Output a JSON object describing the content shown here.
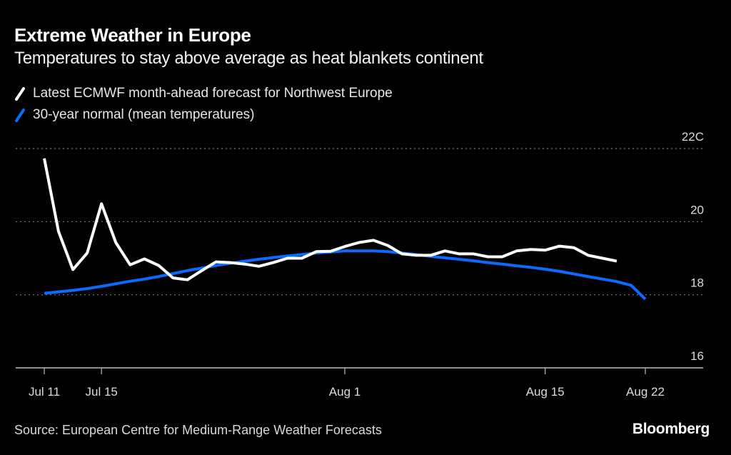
{
  "header": {
    "title": "Extreme Weather in Europe",
    "subtitle": "Temperatures to stay above average as heat blankets continent"
  },
  "footer": {
    "source": "Source: European Centre for Medium-Range Weather Forecasts",
    "logo": "Bloomberg"
  },
  "colors": {
    "background": "#000000",
    "forecast": "#ffffff",
    "normal": "#0a6cff",
    "grid": "#7a7a7a",
    "axis": "#bdbdbd"
  },
  "chart_data": {
    "type": "line",
    "title": "Extreme Weather in Europe",
    "subtitle": "Temperatures to stay above average as heat blankets continent",
    "xlabel": "",
    "ylabel": "",
    "x_unit": "days since Jul 11",
    "x_range": [
      0,
      42
    ],
    "ylim": [
      16,
      22
    ],
    "y_ticks": [
      16,
      18,
      20,
      22
    ],
    "y_tick_labels": [
      "16",
      "18",
      "20",
      "22C"
    ],
    "x_ticks": [
      0,
      4,
      21,
      35,
      42
    ],
    "x_tick_labels": [
      "Jul 11",
      "Jul 15",
      "Aug 1",
      "Aug 15",
      "Aug 22"
    ],
    "grid": true,
    "legend_position": "top-left",
    "series": [
      {
        "name": "Latest ECMWF month-ahead forecast for Northwest Europe",
        "color": "#ffffff",
        "x": [
          0,
          1,
          2,
          3,
          4,
          5,
          6,
          7,
          8,
          9,
          10,
          11,
          12,
          13,
          14,
          15,
          16,
          17,
          18,
          19,
          20,
          21,
          22,
          23,
          24,
          25,
          26,
          27,
          28,
          29,
          30,
          31,
          32,
          33,
          34,
          35,
          36,
          37,
          38,
          39,
          40
        ],
        "values": [
          21.73,
          19.73,
          18.69,
          19.14,
          20.49,
          19.43,
          18.82,
          18.98,
          18.8,
          18.46,
          18.41,
          18.66,
          18.9,
          18.88,
          18.84,
          18.78,
          18.88,
          19.0,
          19.0,
          19.18,
          19.19,
          19.32,
          19.43,
          19.49,
          19.35,
          19.12,
          19.08,
          19.08,
          19.2,
          19.12,
          19.12,
          19.04,
          19.04,
          19.2,
          19.24,
          19.22,
          19.33,
          19.29,
          19.08,
          19.0,
          18.92
        ]
      },
      {
        "name": "30-year normal (mean temperatures)",
        "color": "#0a6cff",
        "x": [
          0,
          1,
          2,
          3,
          4,
          5,
          6,
          7,
          8,
          9,
          10,
          11,
          12,
          13,
          14,
          15,
          16,
          17,
          18,
          19,
          20,
          21,
          22,
          23,
          24,
          25,
          26,
          27,
          28,
          29,
          30,
          31,
          32,
          33,
          34,
          35,
          36,
          37,
          38,
          39,
          40,
          41,
          42
        ],
        "values": [
          18.04,
          18.08,
          18.12,
          18.17,
          18.23,
          18.3,
          18.37,
          18.43,
          18.5,
          18.58,
          18.66,
          18.73,
          18.8,
          18.86,
          18.92,
          18.97,
          19.02,
          19.06,
          19.1,
          19.14,
          19.17,
          19.2,
          19.2,
          19.2,
          19.18,
          19.14,
          19.1,
          19.05,
          19.01,
          18.97,
          18.93,
          18.88,
          18.84,
          18.79,
          18.75,
          18.7,
          18.64,
          18.57,
          18.5,
          18.43,
          18.36,
          18.26,
          17.88
        ]
      }
    ]
  }
}
